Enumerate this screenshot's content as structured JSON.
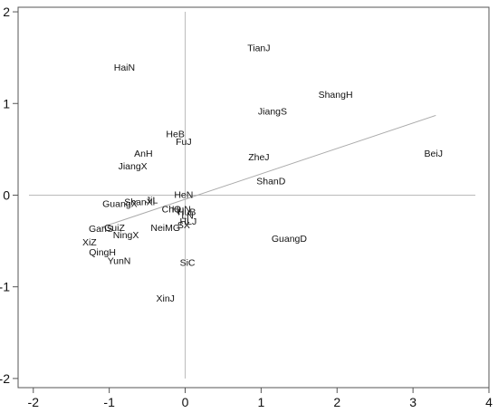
{
  "chart_data": {
    "type": "scatter",
    "title": "",
    "xlabel": "",
    "ylabel": "",
    "xlim": [
      -2.2,
      4.0
    ],
    "ylim": [
      -2.1,
      2.05
    ],
    "x_ticks": [
      -2,
      -1,
      0,
      1,
      2,
      3,
      4
    ],
    "y_ticks": [
      -2,
      -1,
      0,
      1,
      2
    ],
    "grid": false,
    "legend": "none",
    "reference_lines": {
      "x": 0,
      "y": 0
    },
    "trend_line": {
      "from": [
        -1.1,
        -0.35
      ],
      "to": [
        3.3,
        0.87
      ]
    },
    "colors": {
      "frame": "#555555",
      "text": "#111111",
      "reference": "#bbbbbb",
      "trend": "#aaaaaa"
    },
    "points": [
      {
        "label": "TianJ",
        "x": 0.97,
        "y": 1.61
      },
      {
        "label": "HaiN",
        "x": -0.8,
        "y": 1.4
      },
      {
        "label": "ShangH",
        "x": 1.98,
        "y": 1.1
      },
      {
        "label": "JiangS",
        "x": 1.15,
        "y": 0.92
      },
      {
        "label": "HeB",
        "x": -0.13,
        "y": 0.67
      },
      {
        "label": "FuJ",
        "x": -0.02,
        "y": 0.59
      },
      {
        "label": "AnH",
        "x": -0.55,
        "y": 0.46
      },
      {
        "label": "JiangX",
        "x": -0.69,
        "y": 0.32
      },
      {
        "label": "ZheJ",
        "x": 0.97,
        "y": 0.42
      },
      {
        "label": "BeiJ",
        "x": 3.27,
        "y": 0.46
      },
      {
        "label": "ShanD",
        "x": 1.13,
        "y": 0.16
      },
      {
        "label": "HeN",
        "x": -0.02,
        "y": 0.01
      },
      {
        "label": "ShanXi",
        "x": -0.6,
        "y": -0.07
      },
      {
        "label": "JiL",
        "x": -0.44,
        "y": -0.05
      },
      {
        "label": "GuangX",
        "x": -0.86,
        "y": -0.09
      },
      {
        "label": "ChQ",
        "x": -0.18,
        "y": -0.15
      },
      {
        "label": "HuN",
        "x": -0.05,
        "y": -0.15
      },
      {
        "label": "HuB",
        "x": 0.02,
        "y": -0.18
      },
      {
        "label": "NeiMG",
        "x": -0.26,
        "y": -0.35
      },
      {
        "label": "SX",
        "x": -0.02,
        "y": -0.32
      },
      {
        "label": "LN",
        "x": 0.03,
        "y": -0.22
      },
      {
        "label": "HLJ",
        "x": 0.04,
        "y": -0.28
      },
      {
        "label": "GuangD",
        "x": 1.37,
        "y": -0.47
      },
      {
        "label": "GanS",
        "x": -1.11,
        "y": -0.36
      },
      {
        "label": "GuiZ",
        "x": -0.93,
        "y": -0.35
      },
      {
        "label": "NingX",
        "x": -0.78,
        "y": -0.43
      },
      {
        "label": "XiZ",
        "x": -1.26,
        "y": -0.51
      },
      {
        "label": "QingH",
        "x": -1.09,
        "y": -0.62
      },
      {
        "label": "YunN",
        "x": -0.87,
        "y": -0.71
      },
      {
        "label": "SiC",
        "x": 0.03,
        "y": -0.73
      },
      {
        "label": "XinJ",
        "x": -0.26,
        "y": -1.12
      }
    ]
  }
}
